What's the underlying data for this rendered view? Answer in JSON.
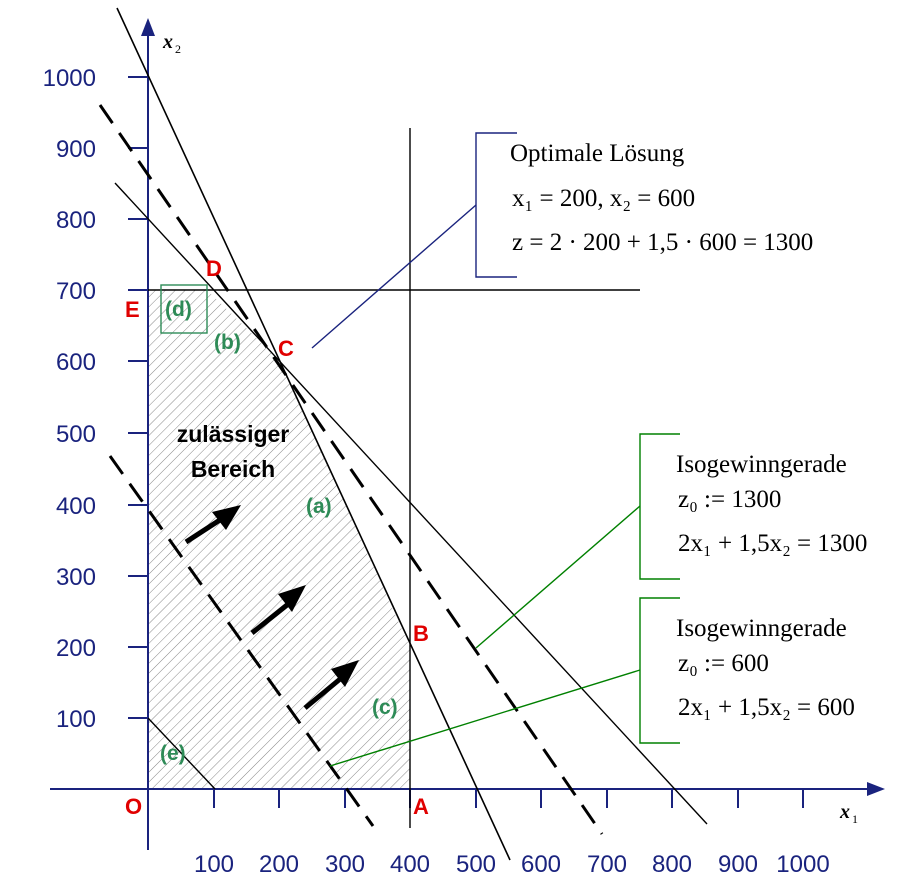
{
  "axes": {
    "x_label": "x",
    "x_sub": "1",
    "y_label": "x",
    "y_sub": "2",
    "x_ticks": [
      "100",
      "200",
      "300",
      "400",
      "500",
      "600",
      "700",
      "800",
      "900",
      "1000"
    ],
    "y_ticks": [
      "100",
      "200",
      "300",
      "400",
      "500",
      "600",
      "700",
      "800",
      "900",
      "1000"
    ]
  },
  "points": {
    "O": "O",
    "A": "A",
    "B": "B",
    "C": "C",
    "D": "D",
    "E": "E"
  },
  "constraints": {
    "a": "(a)",
    "b": "(b)",
    "c": "(c)",
    "d": "(d)",
    "e": "(e)"
  },
  "region": {
    "line1": "zulässiger",
    "line2": "Bereich"
  },
  "optimum_box": {
    "title": "Optimale Lösung",
    "line1": "x₁ = 200, x₂ = 600",
    "line2": "z = 2 · 200 + 1,5 · 600 = 1300"
  },
  "iso_box_1300": {
    "title": "Isogewinngerade",
    "line1": "z₀ := 1300",
    "line2": "2x₁ + 1,5x₂ = 1300"
  },
  "iso_box_600": {
    "title": "Isogewinngerade",
    "line1": "z₀ := 600",
    "line2": "2x₁ + 1,5x₂ = 600"
  },
  "colors": {
    "axis": "#1a237e",
    "point_label": "#e00000",
    "constraint_label": "#2e8b57",
    "iso_leader": "#008000",
    "opt_leader": "#1a237e"
  }
}
